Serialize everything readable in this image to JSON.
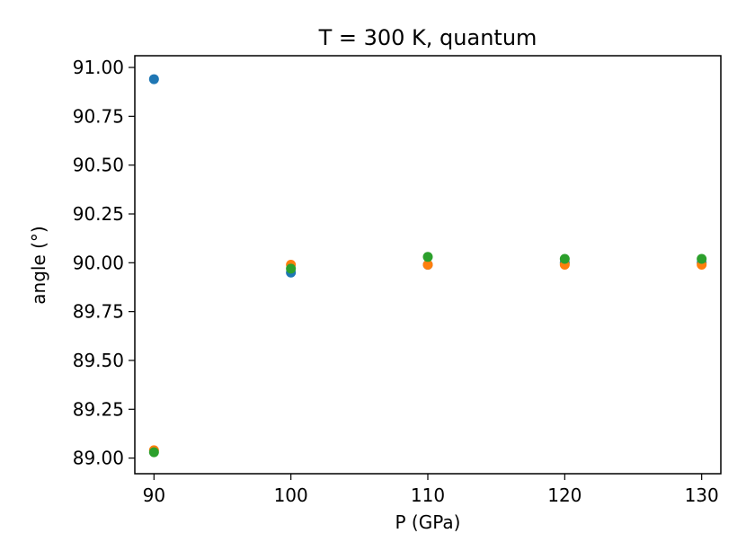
{
  "chart_data": {
    "type": "scatter",
    "title": "T = 300 K, quantum",
    "xlabel": "P (GPa)",
    "ylabel": "angle ($^\\circ$)",
    "ylabel_display": "angle (°)",
    "xlim": [
      88.6,
      131.4
    ],
    "ylim": [
      88.92,
      91.06
    ],
    "xticks": [
      90,
      100,
      110,
      120,
      130
    ],
    "xtick_labels": [
      "90",
      "100",
      "110",
      "120",
      "130"
    ],
    "yticks": [
      89.0,
      89.25,
      89.5,
      89.75,
      90.0,
      90.25,
      90.5,
      90.75,
      91.0
    ],
    "ytick_labels": [
      "89.00",
      "89.25",
      "89.50",
      "89.75",
      "90.00",
      "90.25",
      "90.50",
      "90.75",
      "91.00"
    ],
    "grid": false,
    "legend": "none",
    "series": [
      {
        "color": "#1f77b4",
        "x": [
          90,
          100,
          110,
          120,
          130
        ],
        "y": [
          90.94,
          89.95,
          89.99,
          90.0,
          90.0
        ]
      },
      {
        "color": "#ff7f0e",
        "x": [
          90,
          100,
          110,
          120,
          130
        ],
        "y": [
          89.04,
          89.99,
          89.99,
          89.99,
          89.99
        ]
      },
      {
        "color": "#2ca02c",
        "x": [
          90,
          100,
          110,
          120,
          130
        ],
        "y": [
          89.03,
          89.97,
          90.03,
          90.02,
          90.02
        ]
      }
    ]
  }
}
